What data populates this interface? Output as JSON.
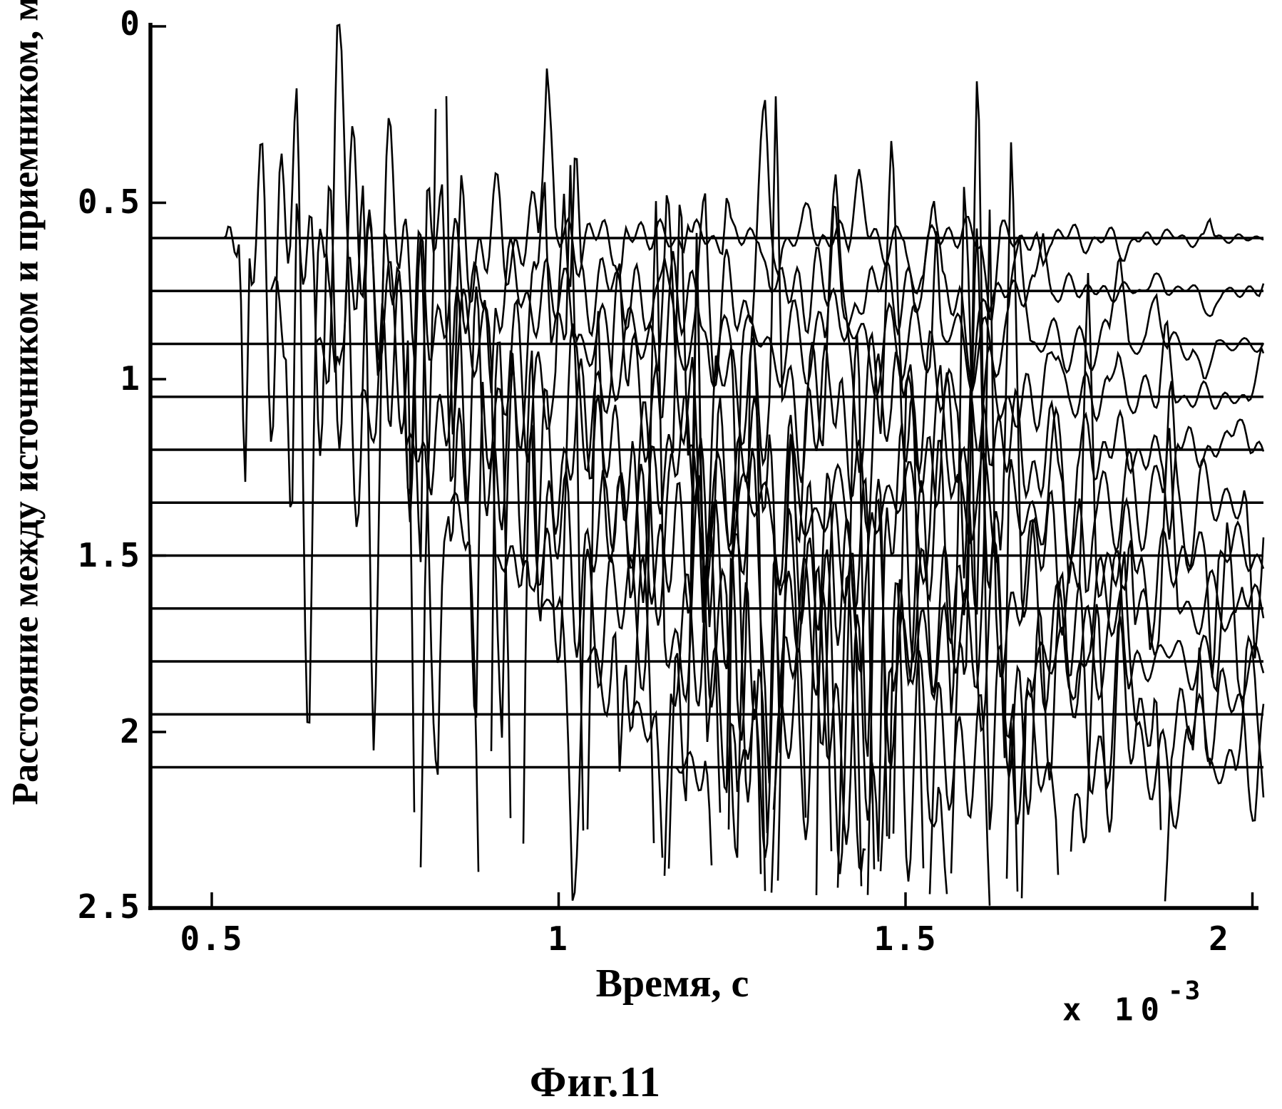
{
  "figure": {
    "caption": "Фиг.11"
  },
  "chart_data": {
    "type": "line",
    "subtype": "seismogram-wiggle-record-section",
    "title": "",
    "xlabel": "Время, с",
    "x_scale_base": "x 10",
    "x_scale_exp": "-3",
    "ylabel": "Расстояние между источником и приемником, м",
    "x_ticks": [
      "0.5",
      "1",
      "1.5",
      "2"
    ],
    "x_tick_values": [
      0.5,
      1.0,
      1.5,
      2.0
    ],
    "y_ticks": [
      "0",
      "0.5",
      "1",
      "1.5",
      "2",
      "2.5"
    ],
    "y_tick_values": [
      0,
      0.5,
      1.0,
      1.5,
      2.0,
      2.5
    ],
    "xlim_ms": [
      0.41,
      2.01
    ],
    "ylim_m": [
      0,
      2.5
    ],
    "y_axis_reversed": true,
    "grid": false,
    "legend": null,
    "colors": {
      "ink": "#000000",
      "paper": "#ffffff"
    },
    "traces": [
      {
        "distance_m": 0.6,
        "onset_time_ms": 0.52,
        "peak_amplitude_m": 0.8,
        "decay_ms": 0.31,
        "seed": 101
      },
      {
        "distance_m": 0.75,
        "onset_time_ms": 0.585,
        "peak_amplitude_m": 0.84,
        "decay_ms": 0.36,
        "seed": 202
      },
      {
        "distance_m": 0.9,
        "onset_time_ms": 0.65,
        "peak_amplitude_m": 0.86,
        "decay_ms": 0.4,
        "seed": 303
      },
      {
        "distance_m": 1.05,
        "onset_time_ms": 0.715,
        "peak_amplitude_m": 0.87,
        "decay_ms": 0.45,
        "seed": 404
      },
      {
        "distance_m": 1.2,
        "onset_time_ms": 0.78,
        "peak_amplitude_m": 0.87,
        "decay_ms": 0.49,
        "seed": 505
      },
      {
        "distance_m": 1.35,
        "onset_time_ms": 0.845,
        "peak_amplitude_m": 0.86,
        "decay_ms": 0.54,
        "seed": 606
      },
      {
        "distance_m": 1.5,
        "onset_time_ms": 0.91,
        "peak_amplitude_m": 0.85,
        "decay_ms": 0.58,
        "seed": 707
      },
      {
        "distance_m": 1.65,
        "onset_time_ms": 0.975,
        "peak_amplitude_m": 0.84,
        "decay_ms": 0.63,
        "seed": 808
      },
      {
        "distance_m": 1.8,
        "onset_time_ms": 1.04,
        "peak_amplitude_m": 0.83,
        "decay_ms": 0.67,
        "seed": 909
      },
      {
        "distance_m": 1.95,
        "onset_time_ms": 1.105,
        "peak_amplitude_m": 0.82,
        "decay_ms": 0.72,
        "seed": 1010
      },
      {
        "distance_m": 2.1,
        "onset_time_ms": 1.17,
        "peak_amplitude_m": 0.81,
        "decay_ms": 0.76,
        "seed": 1111
      }
    ]
  }
}
